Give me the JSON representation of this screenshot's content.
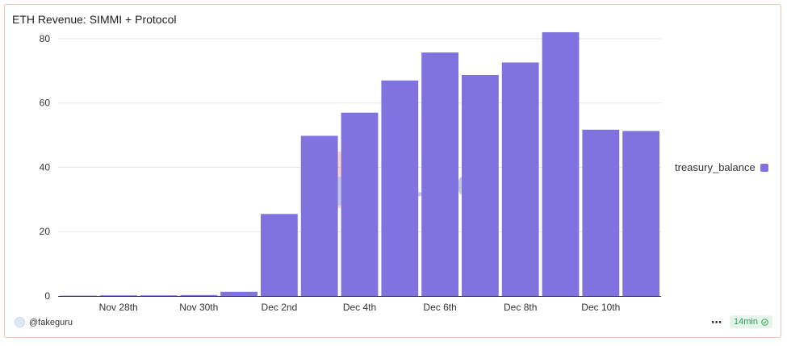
{
  "colors": {
    "bar": "#8073e0",
    "grid": "#e6e6e6",
    "axis": "#333333",
    "legend_swatch": "#8073e0"
  },
  "chart_data": {
    "type": "bar",
    "title": "ETH Revenue: SIMMI + Protocol",
    "xlabel": "",
    "ylabel": "",
    "ylim": [
      0,
      85
    ],
    "grid": true,
    "legend_placement": "right",
    "y_ticks": [
      "0",
      "20",
      "40",
      "60",
      "80"
    ],
    "x_tick_labels": [
      "Nov 28th",
      "Nov 30th",
      "Dec 2nd",
      "Dec 4th",
      "Dec 6th",
      "Dec 8th",
      "Dec 10th"
    ],
    "categories": [
      "Nov 27th",
      "Nov 28th",
      "Nov 29th",
      "Nov 30th",
      "Dec 1st",
      "Dec 2nd",
      "Dec 3rd",
      "Dec 4th",
      "Dec 5th",
      "Dec 6th",
      "Dec 7th",
      "Dec 8th",
      "Dec 9th",
      "Dec 10th",
      "Dec 11th"
    ],
    "series": [
      {
        "name": "treasury_balance",
        "values": [
          0.1,
          0.2,
          0.2,
          0.3,
          1.3,
          25.5,
          49.8,
          57.0,
          67.0,
          75.7,
          68.7,
          72.6,
          82.0,
          51.7,
          51.3
        ]
      }
    ]
  },
  "legend": {
    "label": "treasury_balance"
  },
  "footer": {
    "user": "@fakeguru",
    "more_icon": "ellipsis-icon",
    "refresh_badge": "14min",
    "badge_icon": "check-circle-icon"
  }
}
